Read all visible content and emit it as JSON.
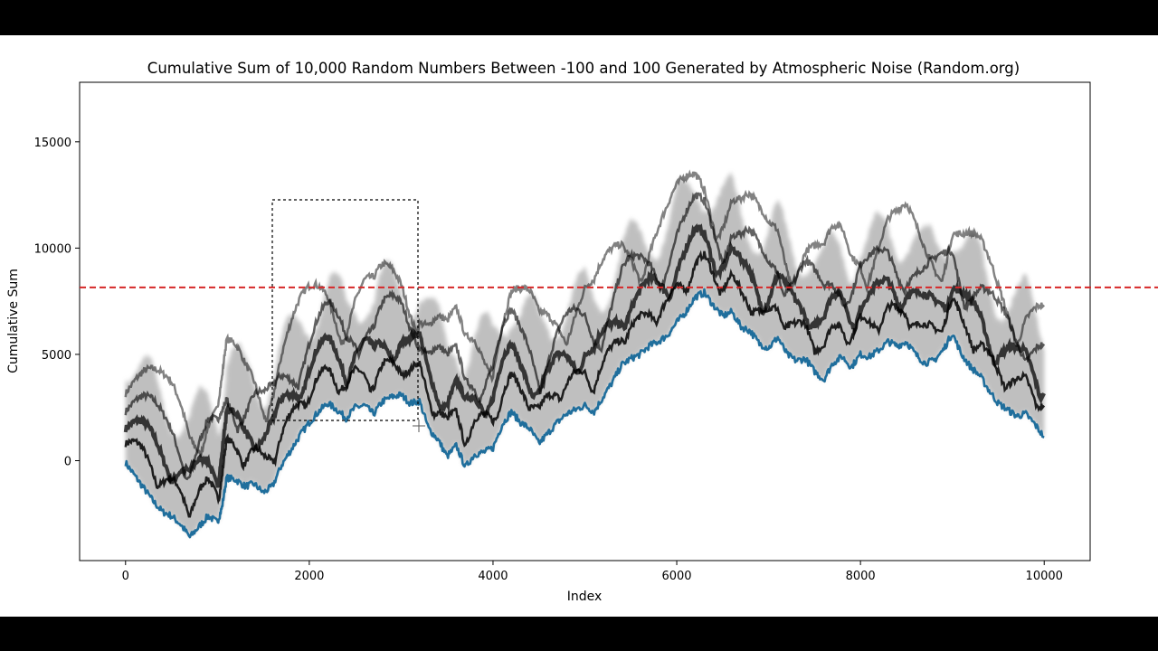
{
  "chart_data": {
    "type": "line",
    "title": "Cumulative Sum of 10,000 Random Numbers Between -100 and 100 Generated by Atmospheric Noise (Random.org)",
    "xlabel": "Index",
    "ylabel": "Cumulative Sum",
    "xlim": [
      -500,
      10500
    ],
    "ylim": [
      -4700,
      17800
    ],
    "xticks": [
      0,
      2000,
      4000,
      6000,
      8000,
      10000
    ],
    "yticks": [
      0,
      5000,
      10000,
      15000
    ],
    "xtick_labels": [
      "0",
      "2000",
      "4000",
      "6000",
      "8000",
      10000
    ],
    "ytick_labels": [
      "0",
      "5000",
      "10000",
      "15000"
    ],
    "grid": false,
    "legend": "none",
    "colors": {
      "series": "#1f6e9c",
      "reference": "#d62728",
      "shadow": "#000000",
      "band": "#8c8c8c"
    },
    "series": [
      {
        "x": [
          0,
          100,
          200,
          300,
          400,
          500,
          600,
          700,
          800,
          900,
          1000,
          1050,
          1100,
          1200,
          1300,
          1400,
          1500,
          1600,
          1700,
          1800,
          1900,
          2000,
          2100,
          2200,
          2300,
          2400,
          2500,
          2600,
          2700,
          2800,
          2900,
          3000,
          3100,
          3200,
          3300,
          3400,
          3500,
          3600,
          3700,
          3800,
          3900,
          4000,
          4100,
          4200,
          4300,
          4400,
          4500,
          4600,
          4700,
          4800,
          4900,
          5000,
          5100,
          5200,
          5300,
          5400,
          5500,
          5600,
          5700,
          5800,
          5900,
          6000,
          6100,
          6200,
          6300,
          6400,
          6500,
          6600,
          6700,
          6800,
          6900,
          7000,
          7100,
          7200,
          7300,
          7400,
          7500,
          7600,
          7700,
          7800,
          7900,
          8000,
          8100,
          8200,
          8300,
          8400,
          8500,
          8600,
          8700,
          8800,
          8900,
          9000,
          9100,
          9200,
          9300,
          9400,
          9500,
          9600,
          9700,
          9800,
          9900,
          10000
        ],
        "y": [
          -100,
          -700,
          -1300,
          -1900,
          -2400,
          -2600,
          -3000,
          -3600,
          -3100,
          -2600,
          -2900,
          -2200,
          -800,
          -900,
          -1200,
          -1100,
          -1500,
          -1200,
          -200,
          500,
          1200,
          1800,
          2300,
          2700,
          2400,
          2000,
          2500,
          2600,
          2200,
          2800,
          3000,
          3100,
          2700,
          2800,
          1500,
          1000,
          200,
          700,
          -300,
          300,
          400,
          600,
          1700,
          2300,
          1800,
          1500,
          800,
          1300,
          1800,
          2200,
          2400,
          2600,
          2300,
          3000,
          3700,
          4500,
          4800,
          5000,
          5400,
          5600,
          5900,
          6500,
          7000,
          7700,
          7900,
          7300,
          6800,
          7000,
          6300,
          6100,
          5500,
          5300,
          5800,
          5000,
          4700,
          4800,
          4200,
          3800,
          4600,
          4900,
          4400,
          5000,
          4900,
          5200,
          5600,
          5400,
          5600,
          5000,
          4600,
          4700,
          5200,
          6000,
          5000,
          4400,
          4000,
          3300,
          2700,
          2400,
          2100,
          2200,
          1700,
          1100
        ]
      },
      {
        "name": "reference",
        "y": [
          8150
        ],
        "style": "dashed"
      }
    ]
  }
}
